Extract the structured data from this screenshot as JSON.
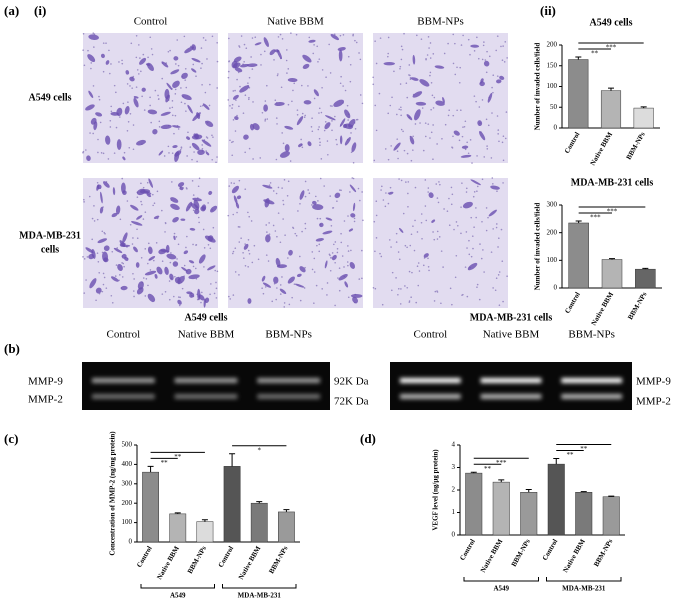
{
  "panels": {
    "a": "(a)",
    "a_i": "(i)",
    "a_ii": "(ii)",
    "b": "(b)",
    "c": "(c)",
    "d": "(d)"
  },
  "micrographs": {
    "columns": [
      "Control",
      "Native BBM",
      "BBM-NPs"
    ],
    "rows": [
      [
        "A549 cells"
      ],
      [
        "MDA-MB-231",
        "cells"
      ]
    ]
  },
  "gels": [
    {
      "title": "A549 cells",
      "lanes": [
        "Control",
        "Native BBM",
        "BBM-NPs"
      ],
      "markers": [
        "92K Da",
        "72K Da"
      ]
    },
    {
      "title": "MDA-MB-231 cells",
      "lanes": [
        "Control",
        "Native BBM",
        "BBM-NPs"
      ],
      "markers": [
        "MMP-9",
        "MMP-2"
      ]
    }
  ],
  "gel_left_markers": [
    "MMP-9",
    "MMP-2"
  ],
  "chart_data": [
    {
      "type": "bar",
      "title": "A549 cells",
      "y_label": "Number of invaded cells/field",
      "categories": [
        "Control",
        "Native BBM",
        "BBM-NPs"
      ],
      "values": [
        165,
        90,
        48
      ],
      "errors": [
        6,
        6,
        3
      ],
      "colors": [
        "#8c8c8c",
        "#b4b4b4",
        "#dcdcdc"
      ],
      "ylim": [
        0,
        200
      ],
      "yticks": [
        0,
        50,
        100,
        150,
        200
      ],
      "annotations": [
        {
          "label": "**",
          "from": 0,
          "to": 1
        },
        {
          "label": "***",
          "from": 0,
          "to": 2
        }
      ]
    },
    {
      "type": "bar",
      "title": "MDA-MB-231 cells",
      "y_label": "Number of invaded cells/field",
      "categories": [
        "Control",
        "Native BBM",
        "BBM-NPs"
      ],
      "values": [
        235,
        103,
        68
      ],
      "errors": [
        7,
        3,
        3
      ],
      "colors": [
        "#8c8c8c",
        "#b4b4b4",
        "#666666"
      ],
      "ylim": [
        0,
        300
      ],
      "yticks": [
        0,
        100,
        200,
        300
      ],
      "annotations": [
        {
          "label": "***",
          "from": 0,
          "to": 1
        },
        {
          "label": "***",
          "from": 0,
          "to": 2
        }
      ]
    },
    {
      "type": "bar",
      "y_label": "Concentration of MMP-2 (ng/mg protein)",
      "categories": [
        "Control",
        "Native BBM",
        "BBM-NPs",
        "Control",
        "Native BBM",
        "BBM-NPs"
      ],
      "values": [
        360,
        145,
        105,
        390,
        200,
        155
      ],
      "errors": [
        30,
        5,
        10,
        65,
        8,
        12
      ],
      "colors": [
        "#8c8c8c",
        "#b4b4b4",
        "#dcdcdc",
        "#555555",
        "#7a7a7a",
        "#9a9a9a"
      ],
      "ylim": [
        0,
        500
      ],
      "yticks": [
        0,
        100,
        200,
        300,
        400,
        500
      ],
      "groups": [
        "A549",
        "MDA-MB-231"
      ],
      "annotations": [
        {
          "label": "**",
          "from": 0,
          "to": 1
        },
        {
          "label": "**",
          "from": 0,
          "to": 2
        },
        {
          "label": "*",
          "from": 3,
          "to": 5
        }
      ]
    },
    {
      "type": "bar",
      "y_label": "VEGF level (ng/µg protein)",
      "categories": [
        "Control",
        "Native BBM",
        "BBM-NPs",
        "Control",
        "Native BBM",
        "BBM-NPs"
      ],
      "values": [
        2.75,
        2.35,
        1.9,
        3.15,
        1.9,
        1.7
      ],
      "errors": [
        0.04,
        0.1,
        0.12,
        0.25,
        0.03,
        0.03
      ],
      "colors": [
        "#8c8c8c",
        "#b4b4b4",
        "#9a9a9a",
        "#555555",
        "#7a7a7a",
        "#9a9a9a"
      ],
      "ylim": [
        0,
        4
      ],
      "yticks": [
        0,
        1,
        2,
        3,
        4
      ],
      "groups": [
        "A549",
        "MDA-MB-231"
      ],
      "annotations": [
        {
          "label": "**",
          "from": 0,
          "to": 1
        },
        {
          "label": "***",
          "from": 0,
          "to": 2
        },
        {
          "label": "**",
          "from": 3,
          "to": 4
        },
        {
          "label": "**",
          "from": 3,
          "to": 5
        }
      ]
    }
  ]
}
